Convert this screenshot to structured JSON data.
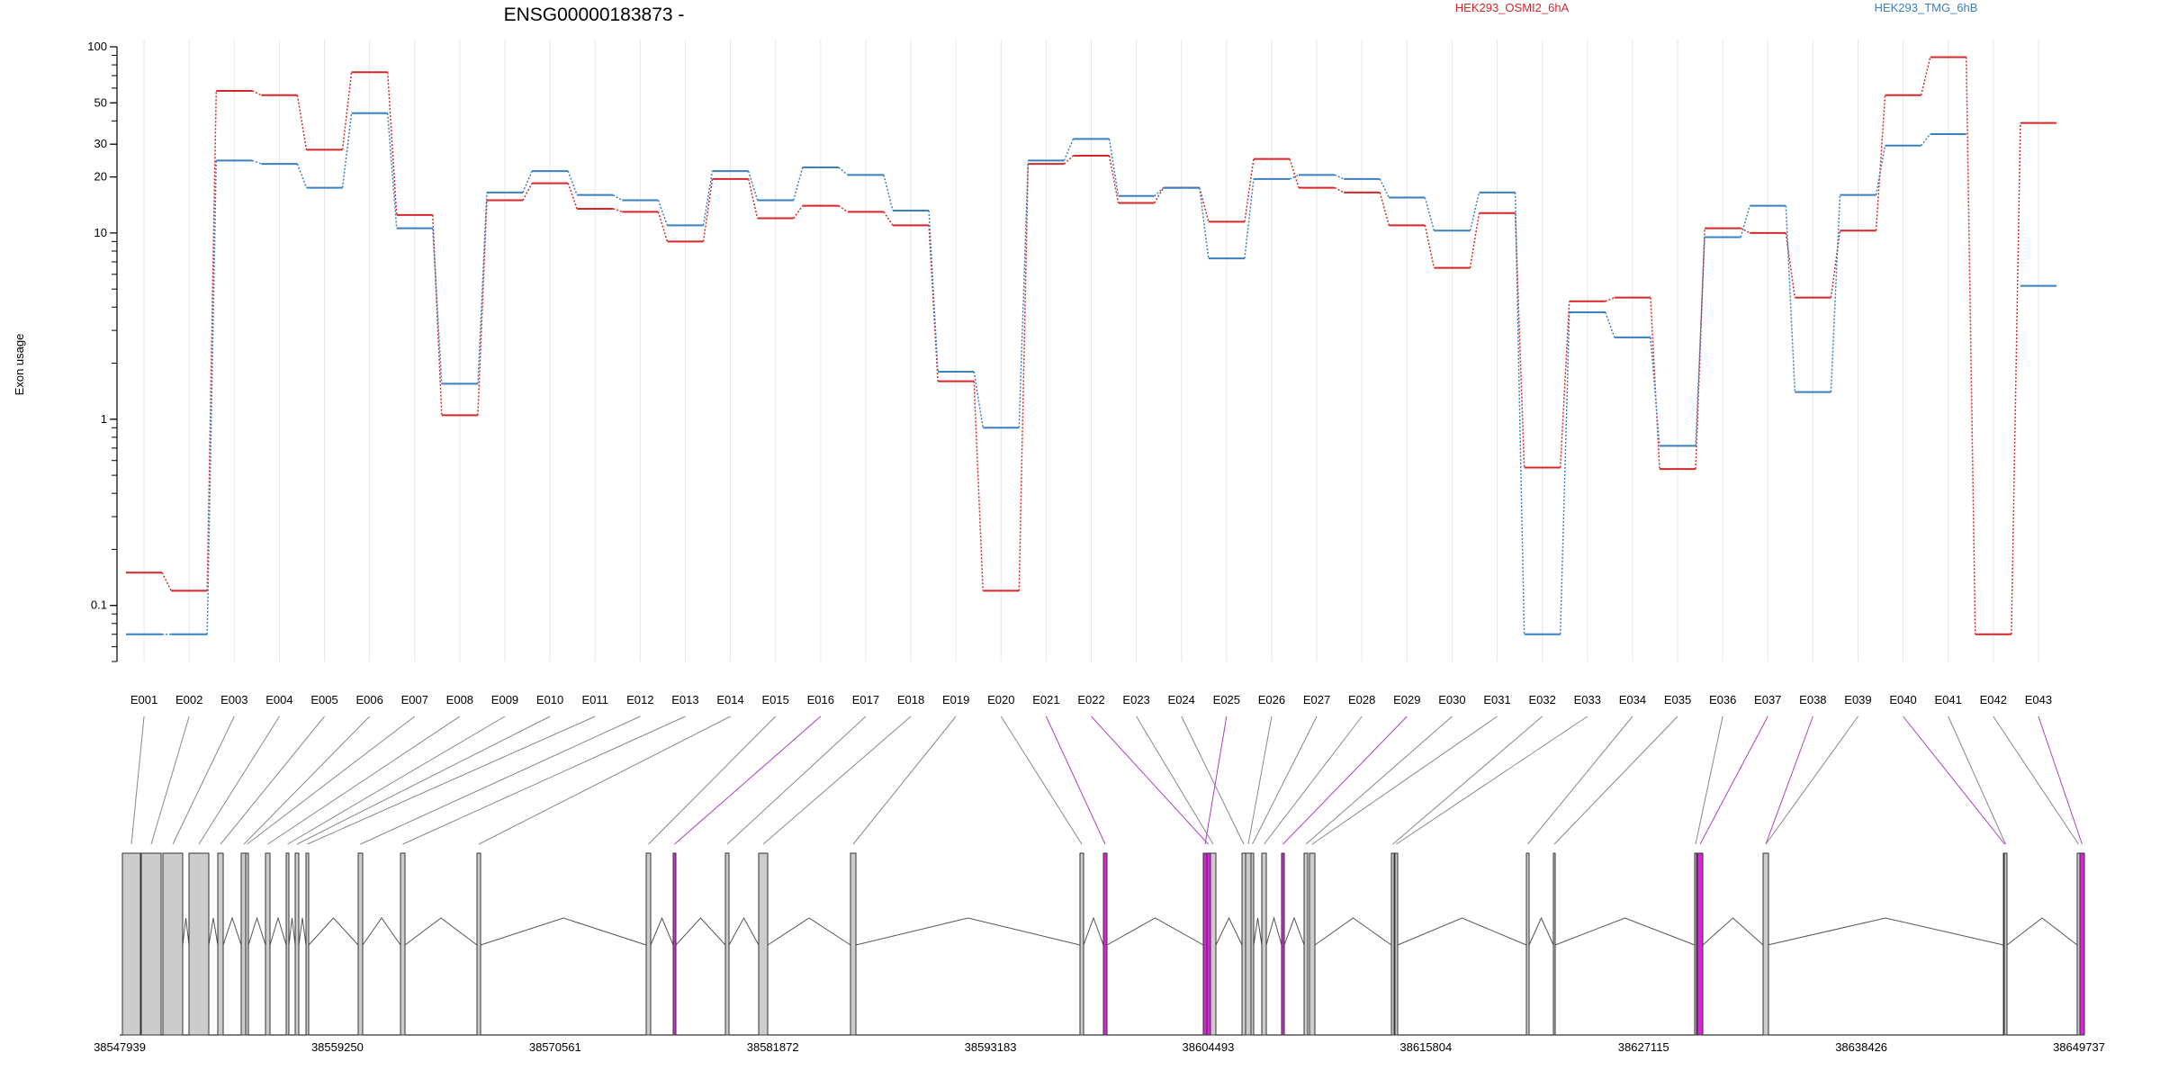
{
  "chart_data": {
    "type": "line",
    "title": "ENSG00000183873 -",
    "ylabel": "Exon usage",
    "yscale": "log",
    "ylim": [
      0.05,
      100
    ],
    "yticks": [
      0.1,
      1,
      10,
      20,
      30,
      50,
      100
    ],
    "grid": "vertical",
    "legend_placement": "top",
    "categories": [
      "E001",
      "E002",
      "E003",
      "E004",
      "E005",
      "E006",
      "E007",
      "E008",
      "E009",
      "E010",
      "E011",
      "E012",
      "E013",
      "E014",
      "E015",
      "E016",
      "E017",
      "E018",
      "E019",
      "E020",
      "E021",
      "E022",
      "E023",
      "E024",
      "E025",
      "E026",
      "E027",
      "E028",
      "E029",
      "E030",
      "E031",
      "E032",
      "E033",
      "E034",
      "E035",
      "E036",
      "E037",
      "E038",
      "E039",
      "E040",
      "E041",
      "E042",
      "E043"
    ],
    "series": [
      {
        "name": "HEK293_OSMI2_6hA",
        "color": "#d62728",
        "values": [
          0.15,
          0.12,
          58,
          55,
          28,
          73,
          12.5,
          1.05,
          15,
          18.5,
          13.5,
          13,
          9,
          19.5,
          12,
          14,
          13,
          11,
          1.6,
          0.12,
          23.5,
          26,
          14.5,
          17.5,
          11.5,
          25,
          17.5,
          16.5,
          11,
          6.5,
          12.8,
          0.55,
          4.3,
          4.5,
          0.54,
          10.6,
          10,
          4.5,
          10.3,
          55,
          88,
          0.07,
          39
        ]
      },
      {
        "name": "HEK293_TMG_6hB",
        "color": "#3a7fc0",
        "values": [
          0.07,
          0.07,
          24.5,
          23.5,
          17.5,
          44,
          10.6,
          1.55,
          16.5,
          21.5,
          16,
          15,
          11,
          21.5,
          15,
          22.5,
          20.5,
          13.2,
          1.8,
          0.9,
          24.5,
          32,
          15.8,
          17.5,
          7.3,
          19.5,
          20.5,
          19.5,
          15.5,
          10.3,
          16.5,
          0.07,
          3.75,
          2.75,
          0.72,
          9.5,
          14,
          1.4,
          16,
          29.5,
          34,
          null,
          5.2
        ]
      }
    ],
    "gene_model": {
      "coordinates": [
        "38547939",
        "38559250",
        "38570561",
        "38581872",
        "38593183",
        "38604493",
        "38615804",
        "38627115",
        "38638426",
        "38649737"
      ],
      "genomic_start": 38547939,
      "genomic_end": 38649737,
      "exon_color": "#cccccc",
      "highlight_color": "#dd22dd"
    }
  }
}
